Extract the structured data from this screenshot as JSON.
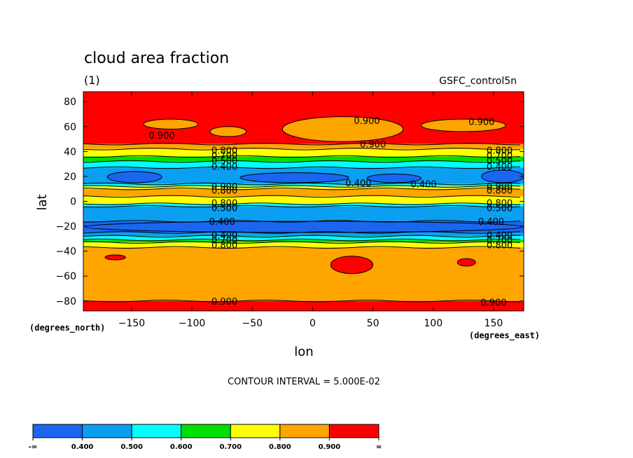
{
  "chart_data": {
    "type": "heatmap",
    "title": "cloud area fraction",
    "units": "(1)",
    "dataset": "GSFC_control5n",
    "xlabel": "lon",
    "ylabel": "lat",
    "x_units": "(degrees_east)",
    "y_units": "(degrees_north)",
    "xlim": [
      -190,
      175
    ],
    "ylim": [
      -88,
      88
    ],
    "x_ticks": [
      -150,
      -100,
      -50,
      0,
      50,
      100,
      150
    ],
    "y_ticks": [
      -80,
      -60,
      -40,
      -20,
      0,
      20,
      40,
      60,
      80
    ],
    "contour_interval_text": "CONTOUR INTERVAL = 5.000E-02",
    "colors": {
      "lt_0.4": "#1a66f0",
      "0.4_0.5": "#0b9ff2",
      "0.5_0.6": "#00ffff",
      "0.6_0.7": "#00e000",
      "0.7_0.8": "#ffff00",
      "0.8_0.9": "#ffa500",
      "gt_0.9": "#ff0000"
    },
    "zonal_bands": [
      {
        "lat_min": 46,
        "lat_max": 88,
        "level": "gt_0.9"
      },
      {
        "lat_min": 42,
        "lat_max": 46,
        "level": "0.8_0.9"
      },
      {
        "lat_min": 36,
        "lat_max": 42,
        "level": "0.7_0.8"
      },
      {
        "lat_min": 32,
        "lat_max": 36,
        "level": "0.6_0.7"
      },
      {
        "lat_min": 27,
        "lat_max": 32,
        "level": "0.5_0.6"
      },
      {
        "lat_min": 14,
        "lat_max": 27,
        "level": "0.4_0.5"
      },
      {
        "lat_min": 12,
        "lat_max": 14,
        "level": "0.5_0.6"
      },
      {
        "lat_min": 10,
        "lat_max": 12,
        "level": "0.7_0.8"
      },
      {
        "lat_min": 4,
        "lat_max": 10,
        "level": "0.8_0.9"
      },
      {
        "lat_min": -2,
        "lat_max": 4,
        "level": "0.7_0.8"
      },
      {
        "lat_min": -4,
        "lat_max": -2,
        "level": "0.5_0.6"
      },
      {
        "lat_min": -16,
        "lat_max": -4,
        "level": "0.4_0.5"
      },
      {
        "lat_min": -25,
        "lat_max": -16,
        "level": "lt_0.4"
      },
      {
        "lat_min": -28,
        "lat_max": -25,
        "level": "0.4_0.5"
      },
      {
        "lat_min": -31,
        "lat_max": -28,
        "level": "0.5_0.6"
      },
      {
        "lat_min": -33,
        "lat_max": -31,
        "level": "0.6_0.7"
      },
      {
        "lat_min": -37,
        "lat_max": -33,
        "level": "0.7_0.8"
      },
      {
        "lat_min": -80,
        "lat_max": -37,
        "level": "0.8_0.9"
      },
      {
        "lat_min": -88,
        "lat_max": -80,
        "level": "gt_0.9"
      }
    ],
    "patches": [
      {
        "lon_min": -140,
        "lon_max": -95,
        "lat_min": 58,
        "lat_max": 66,
        "level": "0.8_0.9"
      },
      {
        "lon_min": -85,
        "lon_max": -55,
        "lat_min": 52,
        "lat_max": 60,
        "level": "0.8_0.9"
      },
      {
        "lon_min": -25,
        "lon_max": 75,
        "lat_min": 48,
        "lat_max": 68,
        "level": "0.8_0.9"
      },
      {
        "lon_min": 90,
        "lon_max": 160,
        "lat_min": 56,
        "lat_max": 66,
        "level": "0.8_0.9"
      },
      {
        "lon_min": -170,
        "lon_max": -125,
        "lat_min": 15,
        "lat_max": 24,
        "level": "lt_0.4"
      },
      {
        "lon_min": -60,
        "lon_max": 30,
        "lat_min": 15,
        "lat_max": 23,
        "level": "lt_0.4"
      },
      {
        "lon_min": 45,
        "lon_max": 90,
        "lat_min": 15,
        "lat_max": 22,
        "level": "lt_0.4"
      },
      {
        "lon_min": 140,
        "lon_max": 175,
        "lat_min": 15,
        "lat_max": 25,
        "level": "lt_0.4"
      },
      {
        "lon_min": -188,
        "lon_max": 175,
        "lat_min": -25,
        "lat_max": -16,
        "level": "lt_0.4"
      },
      {
        "lon_min": 15,
        "lon_max": 50,
        "lat_min": -58,
        "lat_max": -44,
        "level": "gt_0.9"
      },
      {
        "lon_min": -172,
        "lon_max": -155,
        "lat_min": -47,
        "lat_max": -43,
        "level": "gt_0.9"
      },
      {
        "lon_min": 120,
        "lon_max": 135,
        "lat_min": -52,
        "lat_max": -46,
        "level": "gt_0.9"
      }
    ],
    "contour_labels": [
      {
        "text": "0.900",
        "lon": 45,
        "lat": 65
      },
      {
        "text": "0.900",
        "lon": 140,
        "lat": 64
      },
      {
        "text": "0.900",
        "lon": -125,
        "lat": 53
      },
      {
        "text": "0.900",
        "lon": 50,
        "lat": 46
      },
      {
        "text": "0.800",
        "lon": -73,
        "lat": 41
      },
      {
        "text": "0.800",
        "lon": 155,
        "lat": 41
      },
      {
        "text": "0.700",
        "lon": -73,
        "lat": 37
      },
      {
        "text": "0.700",
        "lon": 155,
        "lat": 37
      },
      {
        "text": "0.500",
        "lon": -73,
        "lat": 33
      },
      {
        "text": "0.500",
        "lon": 155,
        "lat": 33
      },
      {
        "text": "0.400",
        "lon": -73,
        "lat": 28
      },
      {
        "text": "0.400",
        "lon": 155,
        "lat": 28
      },
      {
        "text": "0.400",
        "lon": 38,
        "lat": 15
      },
      {
        "text": "0.400",
        "lon": 92,
        "lat": 14
      },
      {
        "text": "0.900",
        "lon": -73,
        "lat": 12
      },
      {
        "text": "0.800",
        "lon": -73,
        "lat": 9
      },
      {
        "text": "0.900",
        "lon": 155,
        "lat": 12
      },
      {
        "text": "0.800",
        "lon": 155,
        "lat": 9
      },
      {
        "text": "0.800",
        "lon": -73,
        "lat": -1
      },
      {
        "text": "0.500",
        "lon": -73,
        "lat": -5
      },
      {
        "text": "0.800",
        "lon": 155,
        "lat": -1
      },
      {
        "text": "0.500",
        "lon": 155,
        "lat": -5
      },
      {
        "text": "0.400",
        "lon": -75,
        "lat": -16
      },
      {
        "text": "0.400",
        "lon": 148,
        "lat": -16
      },
      {
        "text": "0.400",
        "lon": -73,
        "lat": -27
      },
      {
        "text": "0.400",
        "lon": 155,
        "lat": -27
      },
      {
        "text": "0.700",
        "lon": -73,
        "lat": -31
      },
      {
        "text": "0.700",
        "lon": 155,
        "lat": -31
      },
      {
        "text": "0.800",
        "lon": -73,
        "lat": -35
      },
      {
        "text": "0.800",
        "lon": 155,
        "lat": -35
      },
      {
        "text": "0.900",
        "lon": -73,
        "lat": -80
      },
      {
        "text": "0.900",
        "lon": 150,
        "lat": -81
      }
    ],
    "colorbar": {
      "labels": [
        "-∞",
        "0.400",
        "0.500",
        "0.600",
        "0.700",
        "0.800",
        "0.900",
        "∞"
      ],
      "colors": [
        "#1a66f0",
        "#0b9ff2",
        "#00ffff",
        "#00e000",
        "#ffff00",
        "#ffa500",
        "#ff0000"
      ]
    }
  }
}
